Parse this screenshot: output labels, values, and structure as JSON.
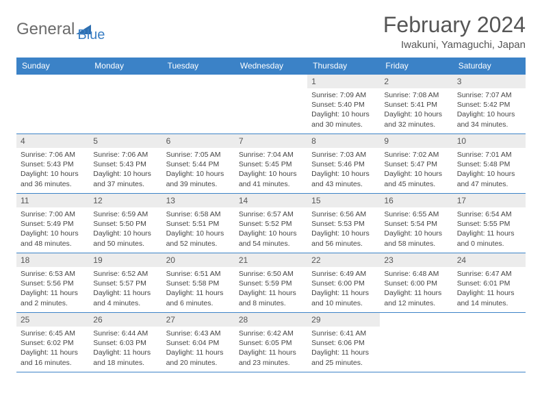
{
  "logo": {
    "text1": "General",
    "text2": "Blue"
  },
  "title": "February 2024",
  "location": "Iwakuni, Yamaguchi, Japan",
  "colors": {
    "header_bg": "#3b82c7",
    "daynum_bg": "#ececec",
    "rule": "#3b82c7",
    "text": "#444444"
  },
  "day_names": [
    "Sunday",
    "Monday",
    "Tuesday",
    "Wednesday",
    "Thursday",
    "Friday",
    "Saturday"
  ],
  "weeks": [
    [
      null,
      null,
      null,
      null,
      {
        "n": "1",
        "sr": "7:09 AM",
        "ss": "5:40 PM",
        "dl": "10 hours and 30 minutes."
      },
      {
        "n": "2",
        "sr": "7:08 AM",
        "ss": "5:41 PM",
        "dl": "10 hours and 32 minutes."
      },
      {
        "n": "3",
        "sr": "7:07 AM",
        "ss": "5:42 PM",
        "dl": "10 hours and 34 minutes."
      }
    ],
    [
      {
        "n": "4",
        "sr": "7:06 AM",
        "ss": "5:43 PM",
        "dl": "10 hours and 36 minutes."
      },
      {
        "n": "5",
        "sr": "7:06 AM",
        "ss": "5:43 PM",
        "dl": "10 hours and 37 minutes."
      },
      {
        "n": "6",
        "sr": "7:05 AM",
        "ss": "5:44 PM",
        "dl": "10 hours and 39 minutes."
      },
      {
        "n": "7",
        "sr": "7:04 AM",
        "ss": "5:45 PM",
        "dl": "10 hours and 41 minutes."
      },
      {
        "n": "8",
        "sr": "7:03 AM",
        "ss": "5:46 PM",
        "dl": "10 hours and 43 minutes."
      },
      {
        "n": "9",
        "sr": "7:02 AM",
        "ss": "5:47 PM",
        "dl": "10 hours and 45 minutes."
      },
      {
        "n": "10",
        "sr": "7:01 AM",
        "ss": "5:48 PM",
        "dl": "10 hours and 47 minutes."
      }
    ],
    [
      {
        "n": "11",
        "sr": "7:00 AM",
        "ss": "5:49 PM",
        "dl": "10 hours and 48 minutes."
      },
      {
        "n": "12",
        "sr": "6:59 AM",
        "ss": "5:50 PM",
        "dl": "10 hours and 50 minutes."
      },
      {
        "n": "13",
        "sr": "6:58 AM",
        "ss": "5:51 PM",
        "dl": "10 hours and 52 minutes."
      },
      {
        "n": "14",
        "sr": "6:57 AM",
        "ss": "5:52 PM",
        "dl": "10 hours and 54 minutes."
      },
      {
        "n": "15",
        "sr": "6:56 AM",
        "ss": "5:53 PM",
        "dl": "10 hours and 56 minutes."
      },
      {
        "n": "16",
        "sr": "6:55 AM",
        "ss": "5:54 PM",
        "dl": "10 hours and 58 minutes."
      },
      {
        "n": "17",
        "sr": "6:54 AM",
        "ss": "5:55 PM",
        "dl": "11 hours and 0 minutes."
      }
    ],
    [
      {
        "n": "18",
        "sr": "6:53 AM",
        "ss": "5:56 PM",
        "dl": "11 hours and 2 minutes."
      },
      {
        "n": "19",
        "sr": "6:52 AM",
        "ss": "5:57 PM",
        "dl": "11 hours and 4 minutes."
      },
      {
        "n": "20",
        "sr": "6:51 AM",
        "ss": "5:58 PM",
        "dl": "11 hours and 6 minutes."
      },
      {
        "n": "21",
        "sr": "6:50 AM",
        "ss": "5:59 PM",
        "dl": "11 hours and 8 minutes."
      },
      {
        "n": "22",
        "sr": "6:49 AM",
        "ss": "6:00 PM",
        "dl": "11 hours and 10 minutes."
      },
      {
        "n": "23",
        "sr": "6:48 AM",
        "ss": "6:00 PM",
        "dl": "11 hours and 12 minutes."
      },
      {
        "n": "24",
        "sr": "6:47 AM",
        "ss": "6:01 PM",
        "dl": "11 hours and 14 minutes."
      }
    ],
    [
      {
        "n": "25",
        "sr": "6:45 AM",
        "ss": "6:02 PM",
        "dl": "11 hours and 16 minutes."
      },
      {
        "n": "26",
        "sr": "6:44 AM",
        "ss": "6:03 PM",
        "dl": "11 hours and 18 minutes."
      },
      {
        "n": "27",
        "sr": "6:43 AM",
        "ss": "6:04 PM",
        "dl": "11 hours and 20 minutes."
      },
      {
        "n": "28",
        "sr": "6:42 AM",
        "ss": "6:05 PM",
        "dl": "11 hours and 23 minutes."
      },
      {
        "n": "29",
        "sr": "6:41 AM",
        "ss": "6:06 PM",
        "dl": "11 hours and 25 minutes."
      },
      null,
      null
    ]
  ],
  "labels": {
    "sunrise": "Sunrise:",
    "sunset": "Sunset:",
    "daylight": "Daylight:"
  }
}
